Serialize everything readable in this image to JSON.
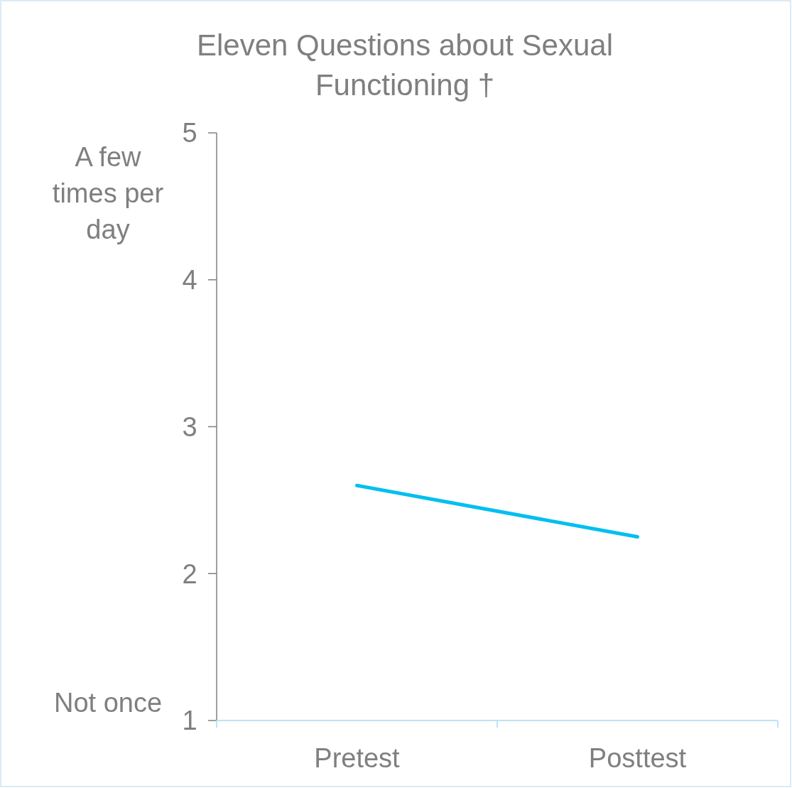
{
  "chart_data": {
    "type": "line",
    "title": "Eleven Questions about Sexual Functioning †",
    "categories": [
      "Pretest",
      "Posttest"
    ],
    "series": [
      {
        "color": "#00bfef",
        "values": [
          2.6,
          2.25
        ]
      }
    ],
    "ylim": [
      1,
      5
    ],
    "yticks": [
      1,
      2,
      3,
      4,
      5
    ],
    "grid": false,
    "annotations": [
      "A few times per day",
      "Not once"
    ]
  }
}
